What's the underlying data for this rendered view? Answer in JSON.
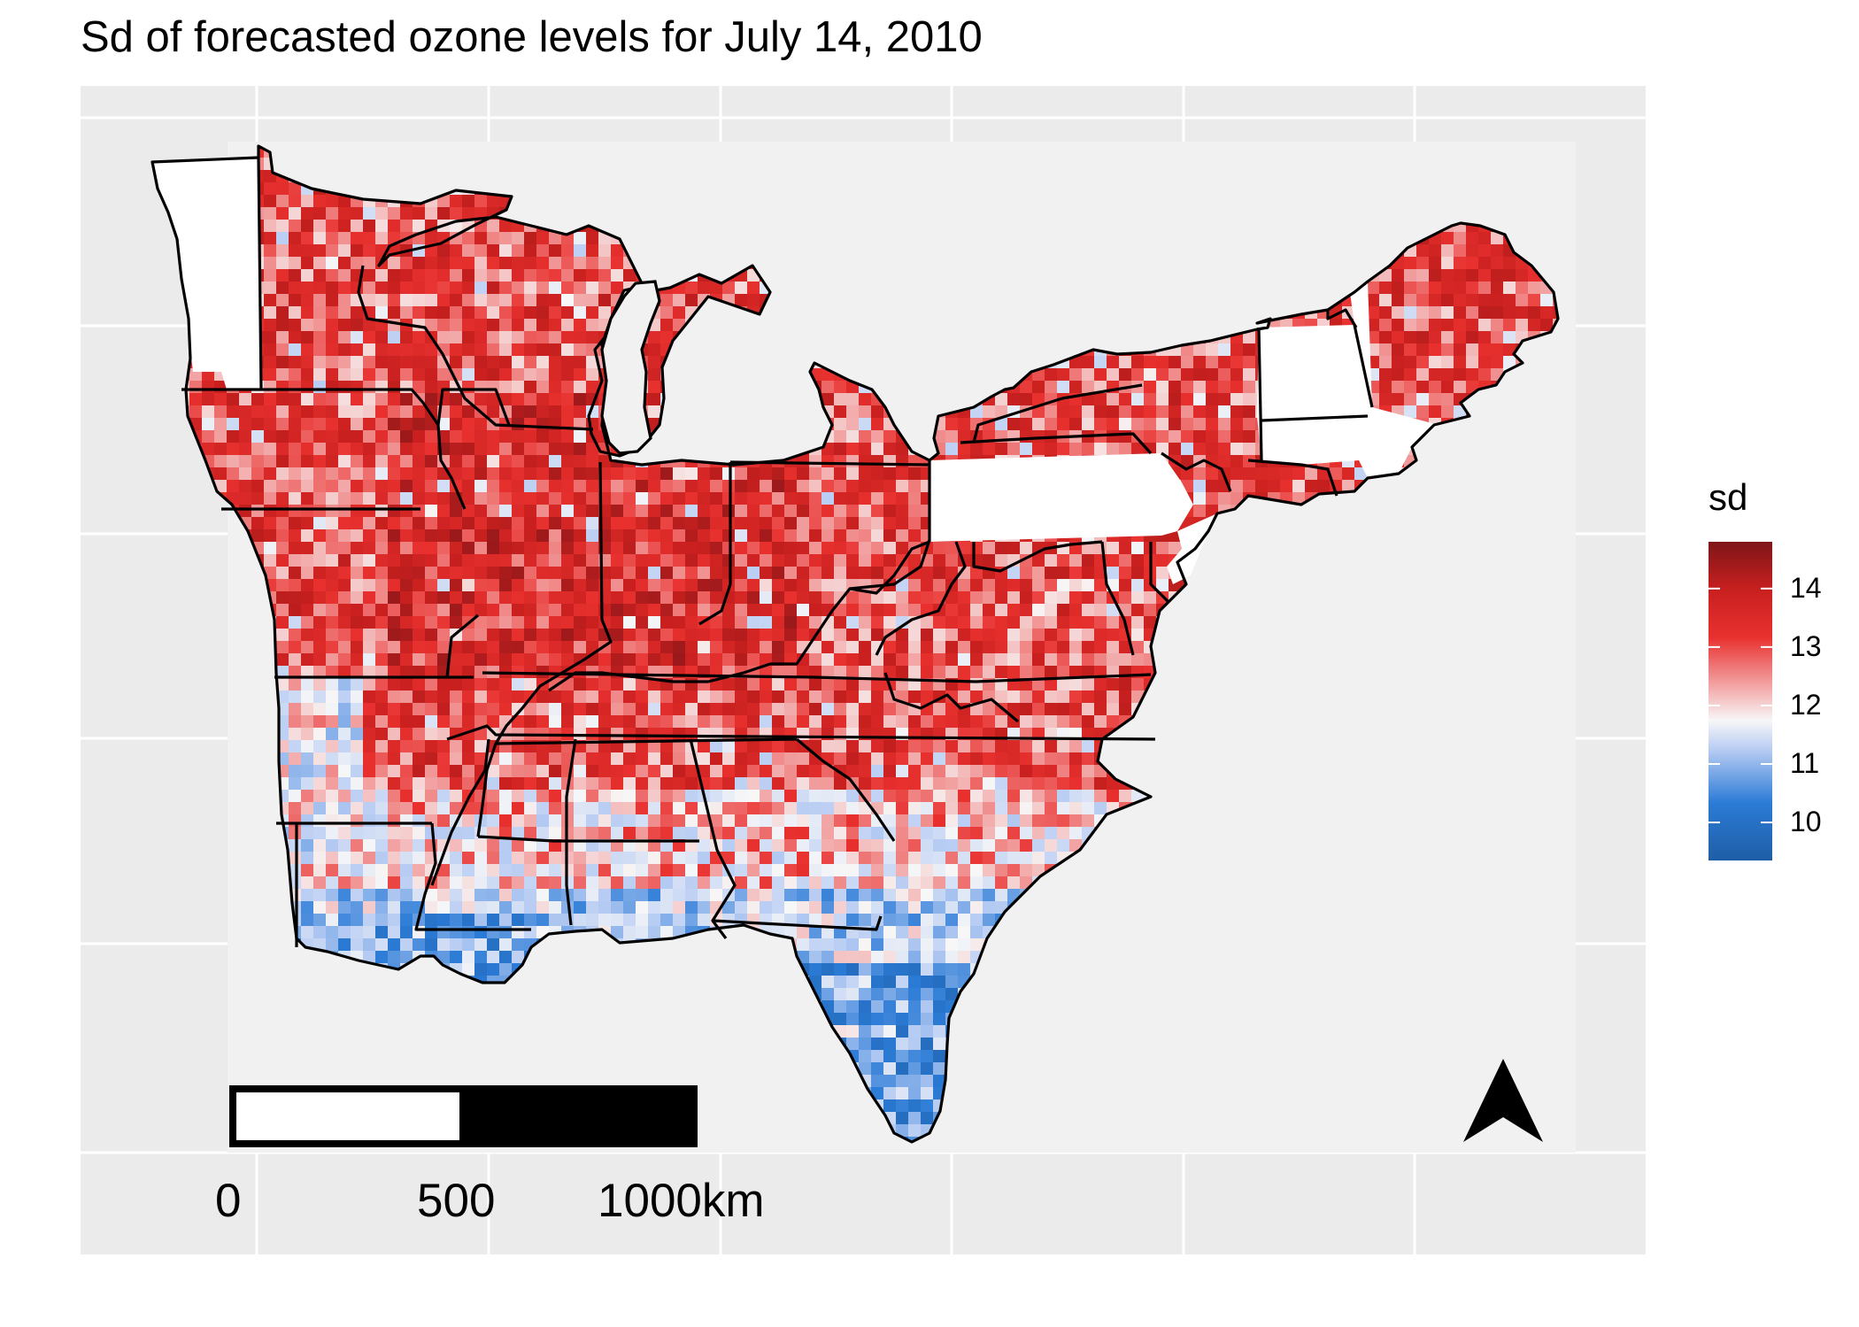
{
  "title": "Sd of forecasted ozone levels for July 14, 2010",
  "legend": {
    "title": "sd",
    "range": [
      9.35,
      14.8
    ],
    "breaks": [
      {
        "value": 14,
        "label": "14"
      },
      {
        "value": 13,
        "label": "13"
      },
      {
        "value": 12,
        "label": "12"
      },
      {
        "value": 11,
        "label": "11"
      },
      {
        "value": 10,
        "label": "10"
      }
    ],
    "colors": [
      "#2166ac",
      "#1b7cd9",
      "#f7f7f7",
      "#e8312f",
      "#b2182b",
      "#8a1a1d"
    ]
  },
  "scale_bar": {
    "labels": [
      {
        "value": 0,
        "label": "0"
      },
      {
        "value": 500,
        "label": "500"
      },
      {
        "value": 1000,
        "label": "1000km"
      }
    ]
  },
  "north_arrow": {
    "icon": "north-arrow-icon"
  },
  "map": {
    "region": "eastern United States",
    "variable": "sd",
    "colors": {
      "panel": "#ebebeb",
      "grid": "#ffffff",
      "raster_bg": "#f1f1f1",
      "borders": "#000000"
    }
  }
}
